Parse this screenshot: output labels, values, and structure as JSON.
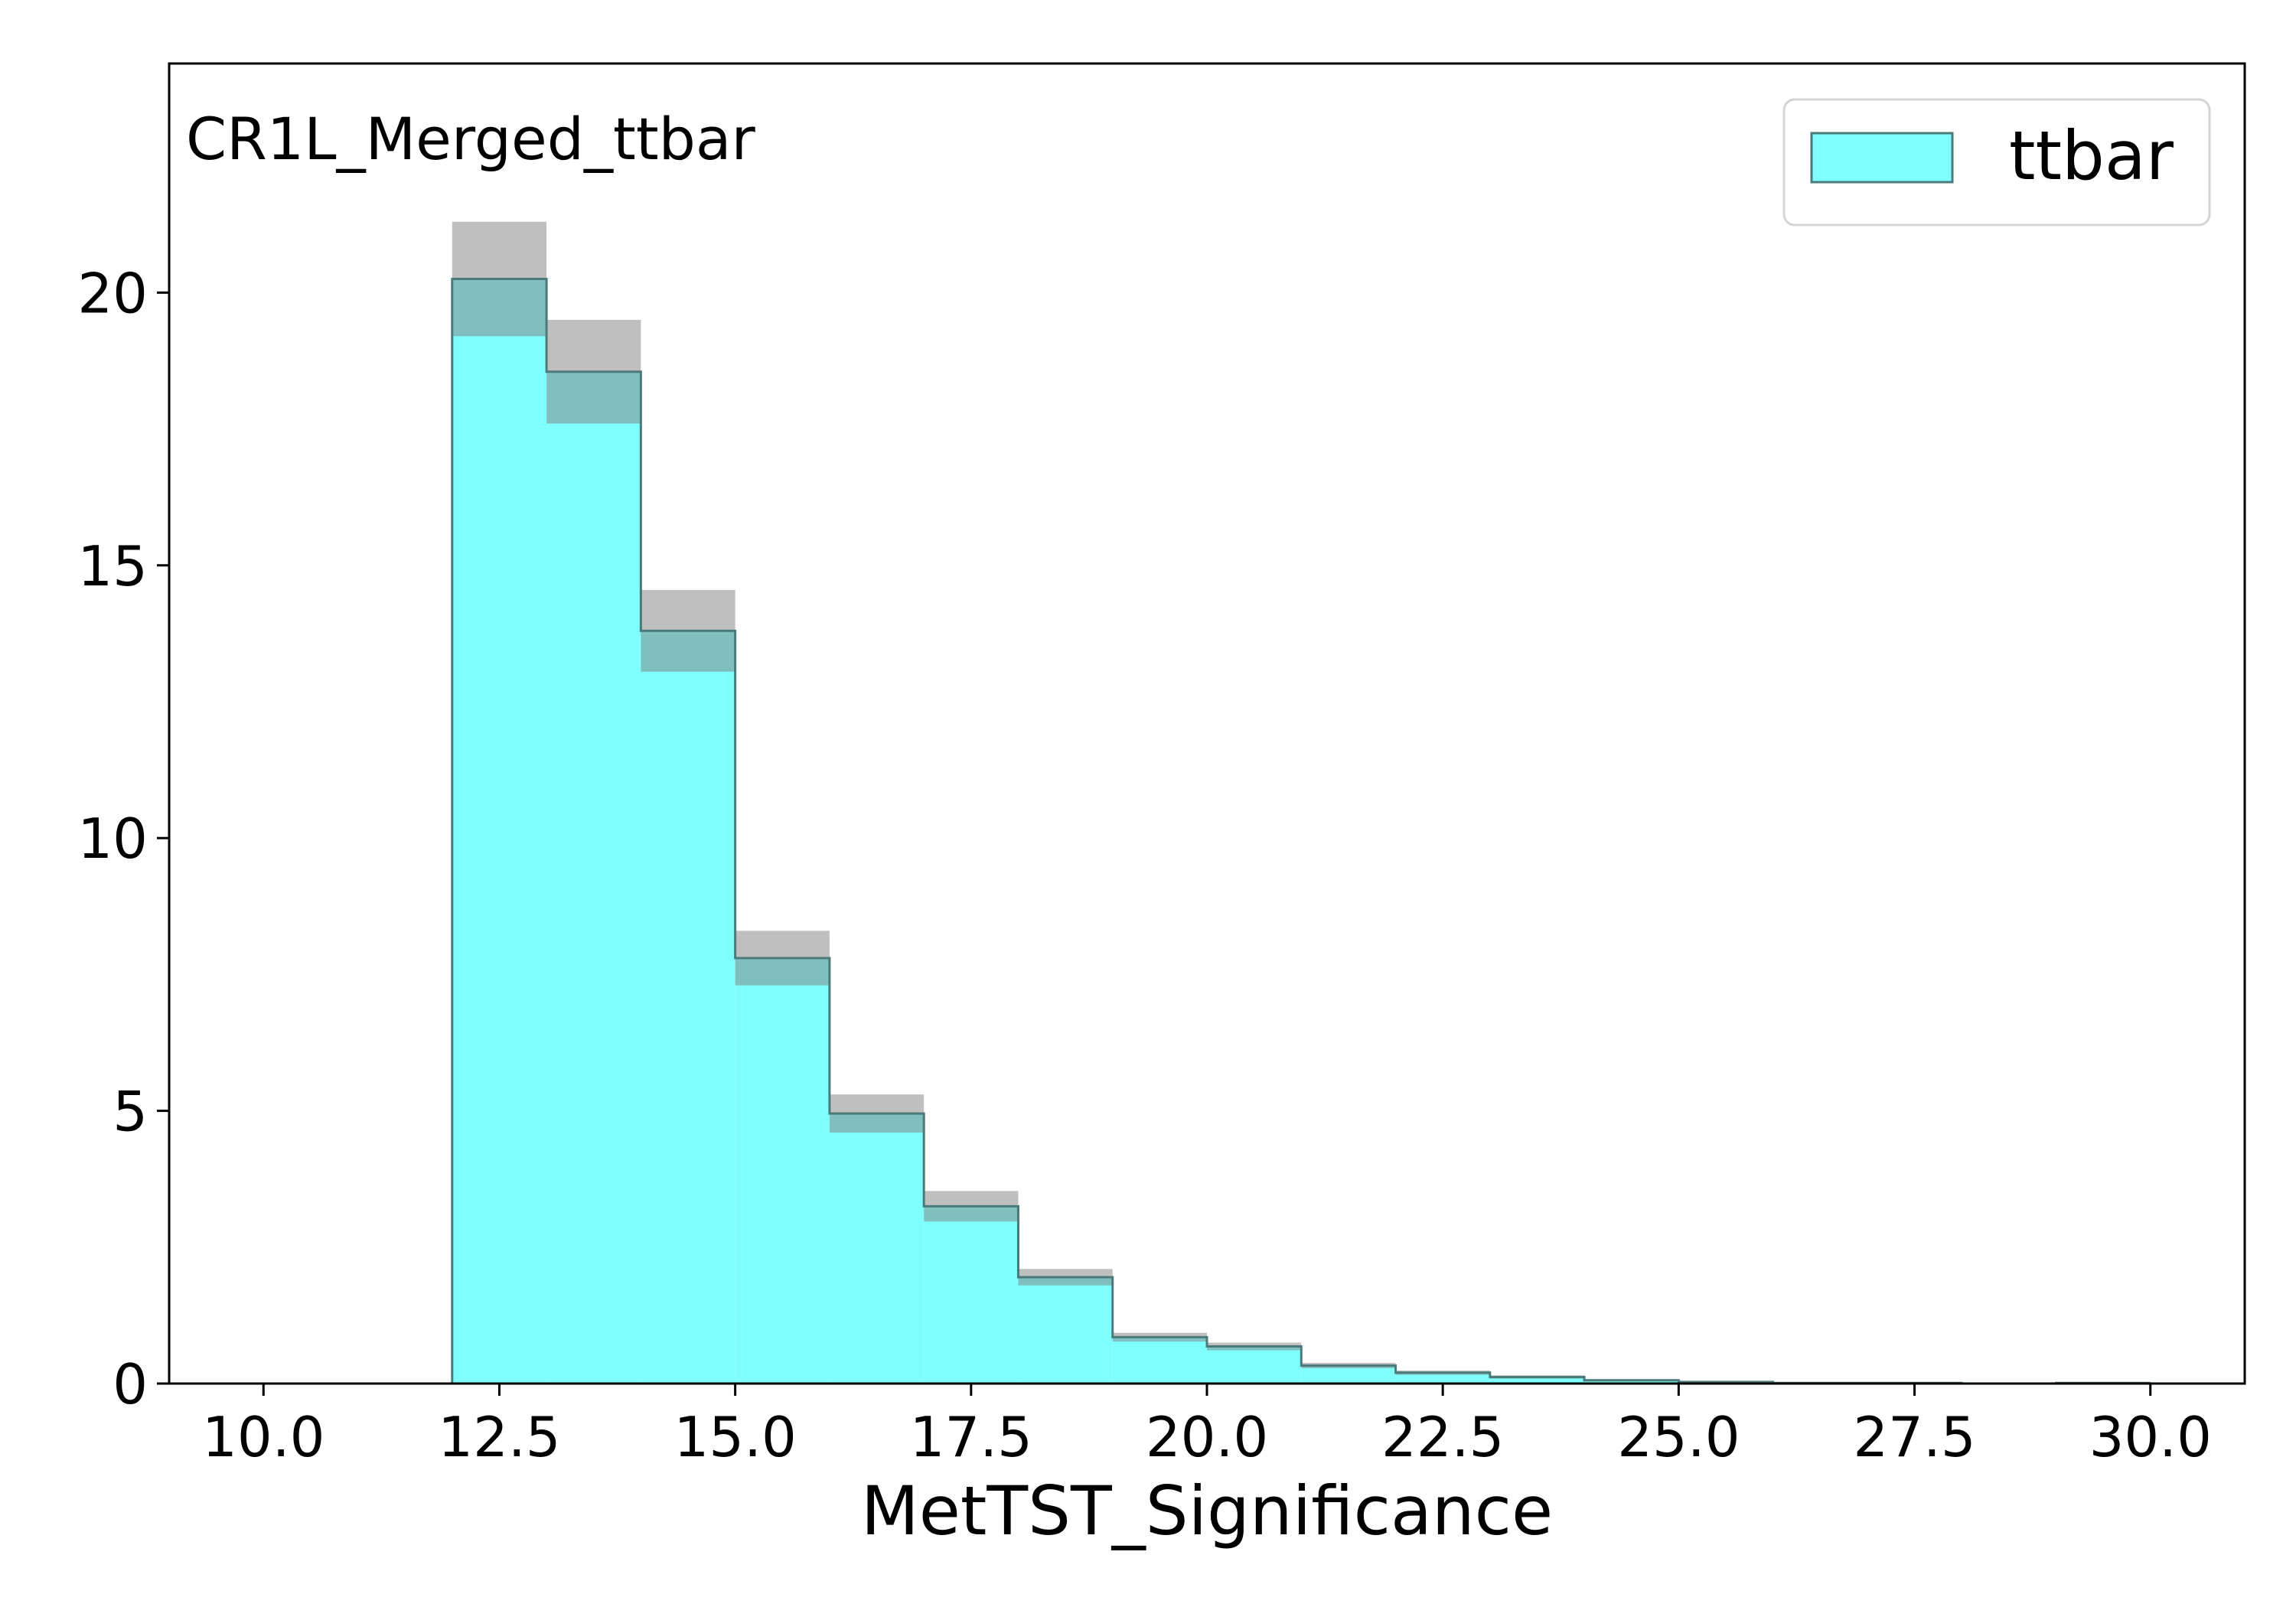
{
  "chart_data": {
    "type": "bar",
    "annotation": "CR1L_Merged_ttbar",
    "xlabel": "MetTST_Significance",
    "ylabel": "",
    "xlim": [
      9.0,
      31.0
    ],
    "ylim": [
      0,
      24.2
    ],
    "xticks": [
      "10.0",
      "12.5",
      "15.0",
      "17.5",
      "20.0",
      "22.5",
      "25.0",
      "27.5",
      "30.0"
    ],
    "yticks": [
      "0",
      "5",
      "10",
      "15",
      "20"
    ],
    "grid": false,
    "legend_position": "top-right",
    "bin_edges": [
      10,
      11,
      12,
      13,
      14,
      15,
      16,
      17,
      18,
      19,
      20,
      21,
      22,
      23,
      24,
      25,
      26,
      27,
      28,
      29,
      30
    ],
    "series": [
      {
        "name": "ttbar",
        "color": "#80ffff",
        "edge_color": "#4a7a7a",
        "values": [
          0,
          0,
          20.25,
          18.55,
          13.8,
          7.8,
          4.95,
          3.25,
          1.95,
          0.85,
          0.68,
          0.33,
          0.2,
          0.12,
          0.06,
          0.03,
          0.01,
          0.01,
          0.0,
          0.01
        ],
        "uncertainty": [
          0,
          0,
          1.05,
          0.95,
          0.75,
          0.5,
          0.35,
          0.28,
          0.15,
          0.08,
          0.07,
          0.05,
          0.04,
          0.03,
          0.02,
          0.01,
          0.01,
          0.01,
          0.0,
          0.01
        ],
        "uncertainty_color": "#808080"
      }
    ]
  }
}
